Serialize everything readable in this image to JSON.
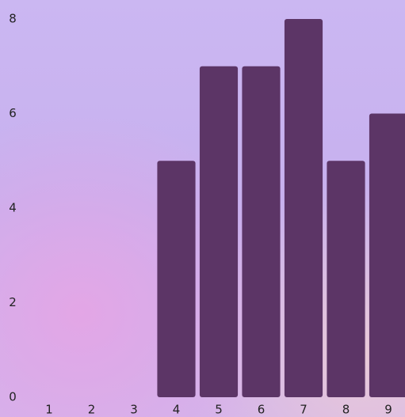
{
  "chart_data": {
    "type": "bar",
    "categories": [
      "1",
      "2",
      "3",
      "4",
      "5",
      "6",
      "7",
      "8",
      "9"
    ],
    "values": [
      0,
      0,
      0,
      5,
      7,
      7,
      8,
      5,
      6
    ],
    "color": "#5c3566",
    "ylim": [
      0,
      8
    ],
    "yticks": [
      0,
      2,
      4,
      6,
      8
    ],
    "grid": false
  }
}
